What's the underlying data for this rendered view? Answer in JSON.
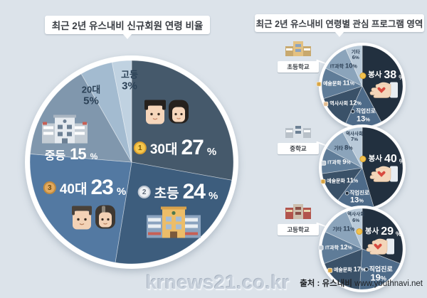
{
  "page": {
    "background": "#dce3ea"
  },
  "titles": {
    "left": "최근 2년 유스내비 신규회원 연령 비율",
    "right": "최근 2년 유스내비 연령별 관심 프로그램 영역"
  },
  "watermark": {
    "text": "krnews21.co.kr"
  },
  "source": {
    "prefix": "출처 : 유스내비",
    "url": "www.youthnavi.net"
  },
  "chart_data": [
    {
      "id": "new-member-age-ratio",
      "type": "pie",
      "title": "최근 2년 유스내비 신규회원 연령 비율",
      "unit": "%",
      "legend_position": "inside",
      "slices": [
        {
          "label": "30대",
          "value": 27,
          "color": "#45596b",
          "medal": "1",
          "icon": "couple-30s-icon"
        },
        {
          "label": "초등",
          "value": 24,
          "color": "#3d5d7d",
          "medal": "2",
          "icon": "elementary-building-icon"
        },
        {
          "label": "40대",
          "value": 23,
          "color": "#5379a2",
          "medal": "3",
          "icon": "couple-40s-icon"
        },
        {
          "label": "중등",
          "value": 15,
          "color": "#8097ad",
          "icon": "middle-building-icon"
        },
        {
          "label": "20대",
          "value": 5,
          "color": "#a3bbd0"
        },
        {
          "label": "고등",
          "value": 3,
          "color": "#c0d2e1"
        }
      ]
    },
    {
      "id": "interest-elementary",
      "type": "pie",
      "title": "초등학교",
      "unit": "%",
      "slices": [
        {
          "label": "봉사",
          "value": 38,
          "color": "#22303f",
          "icon": "helping-hand-icon"
        },
        {
          "label": "직업진로",
          "value": 13,
          "color": "#4e6b89"
        },
        {
          "label": "역사사회",
          "value": 12,
          "color": "#3a5168",
          "icon": "person-icon"
        },
        {
          "label": "예술문화",
          "value": 11,
          "color": "#5f7c98",
          "icon": "palette-icon"
        },
        {
          "label": "IT과학",
          "value": 10,
          "color": "#8ba4bb"
        },
        {
          "label": "기타",
          "value": 6,
          "color": "#b9cad9"
        }
      ]
    },
    {
      "id": "interest-middle",
      "type": "pie",
      "title": "중학교",
      "unit": "%",
      "slices": [
        {
          "label": "봉사",
          "value": 40,
          "color": "#22303f",
          "icon": "helping-hand-icon"
        },
        {
          "label": "직업진로",
          "value": 13,
          "color": "#4e6b89"
        },
        {
          "label": "예술문화",
          "value": 11,
          "color": "#3a5168",
          "icon": "palette-icon"
        },
        {
          "label": "IT과학",
          "value": 9,
          "color": "#5f7c98",
          "icon": "monitor-icon"
        },
        {
          "label": "기타",
          "value": 8,
          "color": "#8ba4bb"
        },
        {
          "label": "역사사회",
          "value": 7,
          "color": "#b9cad9"
        }
      ]
    },
    {
      "id": "interest-high",
      "type": "pie",
      "title": "고등학교",
      "unit": "%",
      "slices": [
        {
          "label": "봉사",
          "value": 29,
          "color": "#22303f",
          "icon": "helping-hand-icon"
        },
        {
          "label": "직업진로",
          "value": 19,
          "color": "#4e6b89"
        },
        {
          "label": "예술문화",
          "value": 17,
          "color": "#3a5168",
          "icon": "palette-icon"
        },
        {
          "label": "IT과학",
          "value": 12,
          "color": "#5f7c98",
          "icon": "monitor-icon"
        },
        {
          "label": "기타",
          "value": 11,
          "color": "#8ba4bb"
        },
        {
          "label": "역사사회",
          "value": 6,
          "color": "#b9cad9"
        }
      ]
    }
  ]
}
